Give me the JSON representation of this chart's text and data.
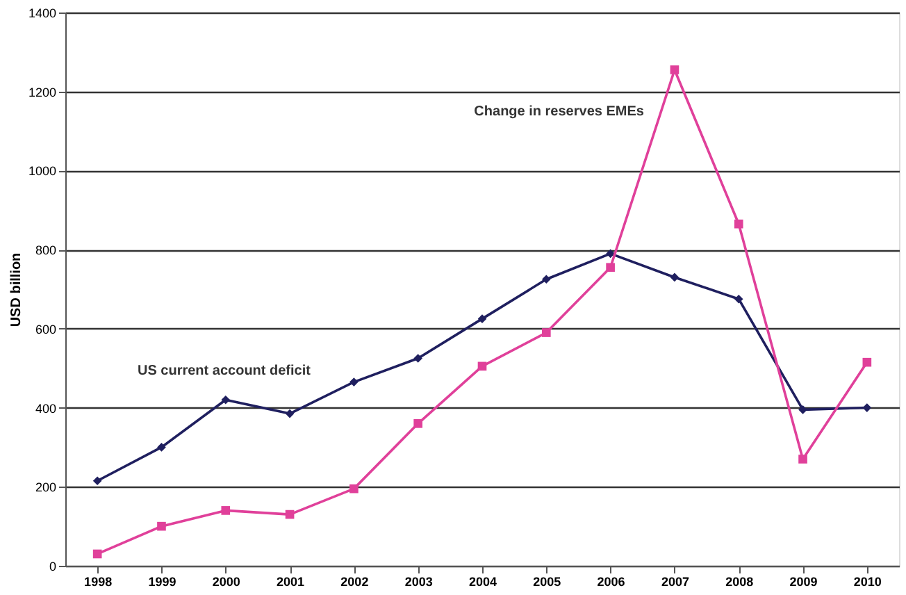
{
  "chart_data": {
    "type": "line",
    "ylabel": "USD billion",
    "categories": [
      "1998",
      "1999",
      "2000",
      "2001",
      "2002",
      "2003",
      "2004",
      "2005",
      "2006",
      "2007",
      "2008",
      "2009",
      "2010"
    ],
    "series": [
      {
        "name": "US current account deficit",
        "color": "#1f1f5f",
        "marker": "diamond",
        "values": [
          215,
          300,
          420,
          385,
          465,
          525,
          625,
          725,
          790,
          730,
          675,
          395,
          400
        ]
      },
      {
        "name": "Change in reserves EMEs",
        "color": "#e0409a",
        "marker": "square",
        "values": [
          30,
          100,
          140,
          130,
          195,
          360,
          505,
          590,
          755,
          1255,
          865,
          270,
          515
        ]
      }
    ],
    "ylim": [
      0,
      1400
    ],
    "yticks": [
      0,
      200,
      400,
      600,
      800,
      {
        "value": 1000,
        "label": "1000"
      },
      {
        "value": 1200,
        "label": "1200"
      },
      {
        "value": 1400,
        "label": "1400"
      }
    ],
    "grid": "y",
    "legend": false,
    "line_style": "solid"
  }
}
